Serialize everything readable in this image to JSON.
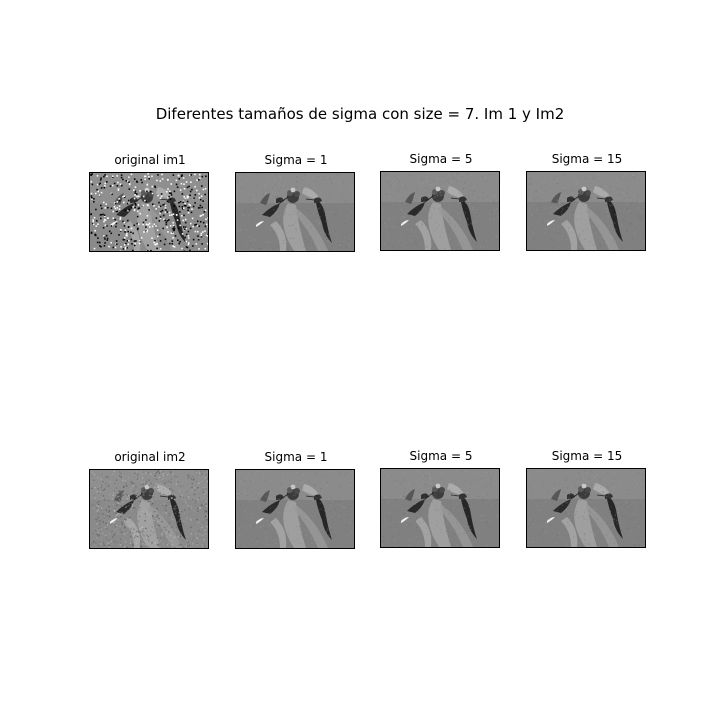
{
  "figure": {
    "title": "Diferentes tamaños de sigma con size = 7. Im 1 y Im2",
    "rows": [
      {
        "panels": [
          {
            "title": "original im1",
            "noise": "salt-pepper",
            "icon": "hummingbird-image-noisy"
          },
          {
            "title": "Sigma = 1",
            "noise": "light",
            "icon": "hummingbird-image-filtered"
          },
          {
            "title": "Sigma = 5",
            "noise": "light",
            "icon": "hummingbird-image-filtered"
          },
          {
            "title": "Sigma = 15",
            "noise": "light",
            "icon": "hummingbird-image-filtered"
          }
        ]
      },
      {
        "panels": [
          {
            "title": "original im2",
            "noise": "gaussian",
            "icon": "hummingbird-image-noisy"
          },
          {
            "title": "Sigma = 1",
            "noise": "light",
            "icon": "hummingbird-image-filtered"
          },
          {
            "title": "Sigma = 5",
            "noise": "light",
            "icon": "hummingbird-image-filtered"
          },
          {
            "title": "Sigma = 15",
            "noise": "light",
            "icon": "hummingbird-image-filtered"
          }
        ]
      }
    ]
  }
}
